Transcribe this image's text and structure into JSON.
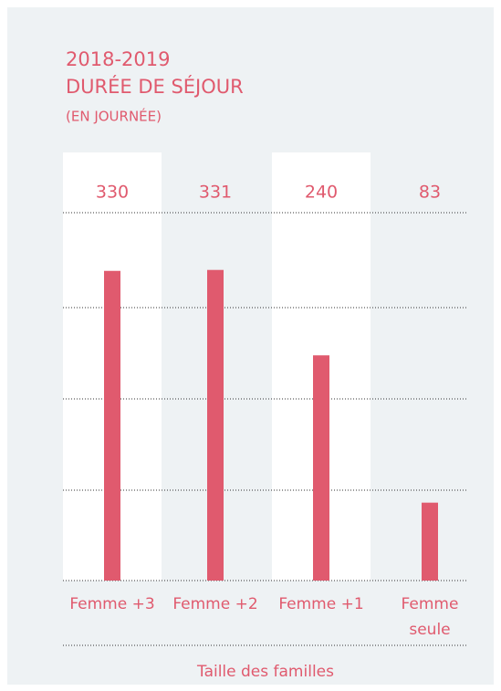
{
  "chart_data": {
    "type": "bar",
    "title": "2018-2019",
    "subtitle": "DURÉE DE SÉJOUR",
    "unit_note": "(EN JOURNÉE)",
    "x_label": "Taille des familles",
    "categories": [
      "Femme +3",
      "Femme +2",
      "Femme +1",
      "Femme seule"
    ],
    "values": [
      330,
      331,
      240,
      83
    ],
    "color": "#e05a6e",
    "ylim": [
      0,
      392
    ]
  }
}
